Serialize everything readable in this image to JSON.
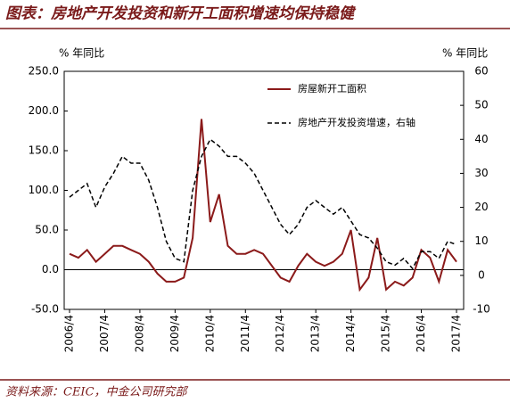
{
  "title": "图表：房地产开发投资和新开工面积增速均保持稳健",
  "source": "资料来源：CEIC，中金公司研究部",
  "chart_data": {
    "type": "line",
    "y_label": "% 年同比",
    "y2_label": "% 年同比",
    "categories": [
      "2006/4",
      null,
      null,
      null,
      "2007/4",
      null,
      null,
      null,
      "2008/4",
      null,
      null,
      null,
      "2009/4",
      null,
      null,
      null,
      "2010/4",
      null,
      null,
      null,
      "2011/4",
      null,
      null,
      null,
      "2012/4",
      null,
      null,
      null,
      "2013/4",
      null,
      null,
      null,
      "2014/4",
      null,
      null,
      null,
      "2015/4",
      null,
      null,
      null,
      "2016/4",
      null,
      null,
      null,
      "2017/4"
    ],
    "series": [
      {
        "name": "房屋新开工面积",
        "color": "#8b1a1a",
        "dashed": false,
        "values": [
          20,
          15,
          25,
          10,
          20,
          30,
          30,
          25,
          20,
          10,
          -5,
          -15,
          -15,
          -10,
          40,
          190,
          60,
          95,
          30,
          20,
          20,
          25,
          20,
          5,
          -10,
          -15,
          5,
          20,
          10,
          5,
          10,
          20,
          50,
          -25,
          -10,
          40,
          -25,
          -15,
          -20,
          -10,
          25,
          15,
          -15,
          25,
          10
        ]
      },
      {
        "name": "房地产开发投资增速，右轴",
        "color": "#000000",
        "dashed": true,
        "axis": "y2",
        "values": [
          23,
          25,
          27,
          20,
          26,
          30,
          35,
          33,
          33,
          28,
          20,
          10,
          5,
          4,
          25,
          35,
          40,
          38,
          35,
          35,
          33,
          30,
          25,
          20,
          15,
          12,
          15,
          20,
          22,
          20,
          18,
          20,
          16,
          12,
          11,
          8,
          4,
          3,
          5,
          2,
          7,
          7,
          5,
          10,
          9
        ]
      }
    ],
    "ylim": [
      -50,
      250
    ],
    "yticks": [
      {
        "value": -50,
        "label": "-50.0"
      },
      {
        "value": 0,
        "label": "0.0"
      },
      {
        "value": 50,
        "label": "50.0"
      },
      {
        "value": 100,
        "label": "100.0"
      },
      {
        "value": 150,
        "label": "150.0"
      },
      {
        "value": 200,
        "label": "200.0"
      },
      {
        "value": 250,
        "label": "250.0"
      }
    ],
    "y2lim": [
      -10,
      60
    ],
    "y2ticks": [
      -10,
      0,
      10,
      20,
      30,
      40,
      50,
      60
    ]
  }
}
